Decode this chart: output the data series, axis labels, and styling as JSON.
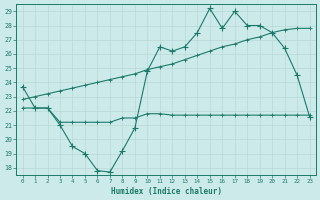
{
  "x": [
    0,
    1,
    2,
    3,
    4,
    5,
    6,
    7,
    8,
    9,
    10,
    11,
    12,
    13,
    14,
    15,
    16,
    17,
    18,
    19,
    20,
    21,
    22,
    23
  ],
  "y_main": [
    23.7,
    22.2,
    22.2,
    21.0,
    19.5,
    19.0,
    17.8,
    17.7,
    19.2,
    20.8,
    24.8,
    26.5,
    26.2,
    26.5,
    27.5,
    29.2,
    27.8,
    29.0,
    28.0,
    28.0,
    27.5,
    26.4,
    24.5,
    21.6
  ],
  "y_upper": [
    22.8,
    23.0,
    23.2,
    23.4,
    23.6,
    23.8,
    24.0,
    24.2,
    24.4,
    24.6,
    24.9,
    25.1,
    25.3,
    25.6,
    25.9,
    26.2,
    26.5,
    26.7,
    27.0,
    27.2,
    27.5,
    27.7,
    27.8,
    27.8
  ],
  "y_lower": [
    22.2,
    22.2,
    22.2,
    21.2,
    21.2,
    21.2,
    21.2,
    21.2,
    21.5,
    21.5,
    21.8,
    21.8,
    21.7,
    21.7,
    21.7,
    21.7,
    21.7,
    21.7,
    21.7,
    21.7,
    21.7,
    21.7,
    21.7,
    21.7
  ],
  "line_color": "#1a7a6a",
  "bg_color": "#cdeaea",
  "grid_color": "#b8d8d5",
  "xlim": [
    -0.5,
    23.5
  ],
  "ylim": [
    17.5,
    29.5
  ],
  "yticks": [
    18,
    19,
    20,
    21,
    22,
    23,
    24,
    25,
    26,
    27,
    28,
    29
  ],
  "xticks": [
    0,
    1,
    2,
    3,
    4,
    5,
    6,
    7,
    8,
    9,
    10,
    11,
    12,
    13,
    14,
    15,
    16,
    17,
    18,
    19,
    20,
    21,
    22,
    23
  ],
  "xlabel": "Humidex (Indice chaleur)",
  "marker_size": 2.5,
  "linewidth": 0.8
}
